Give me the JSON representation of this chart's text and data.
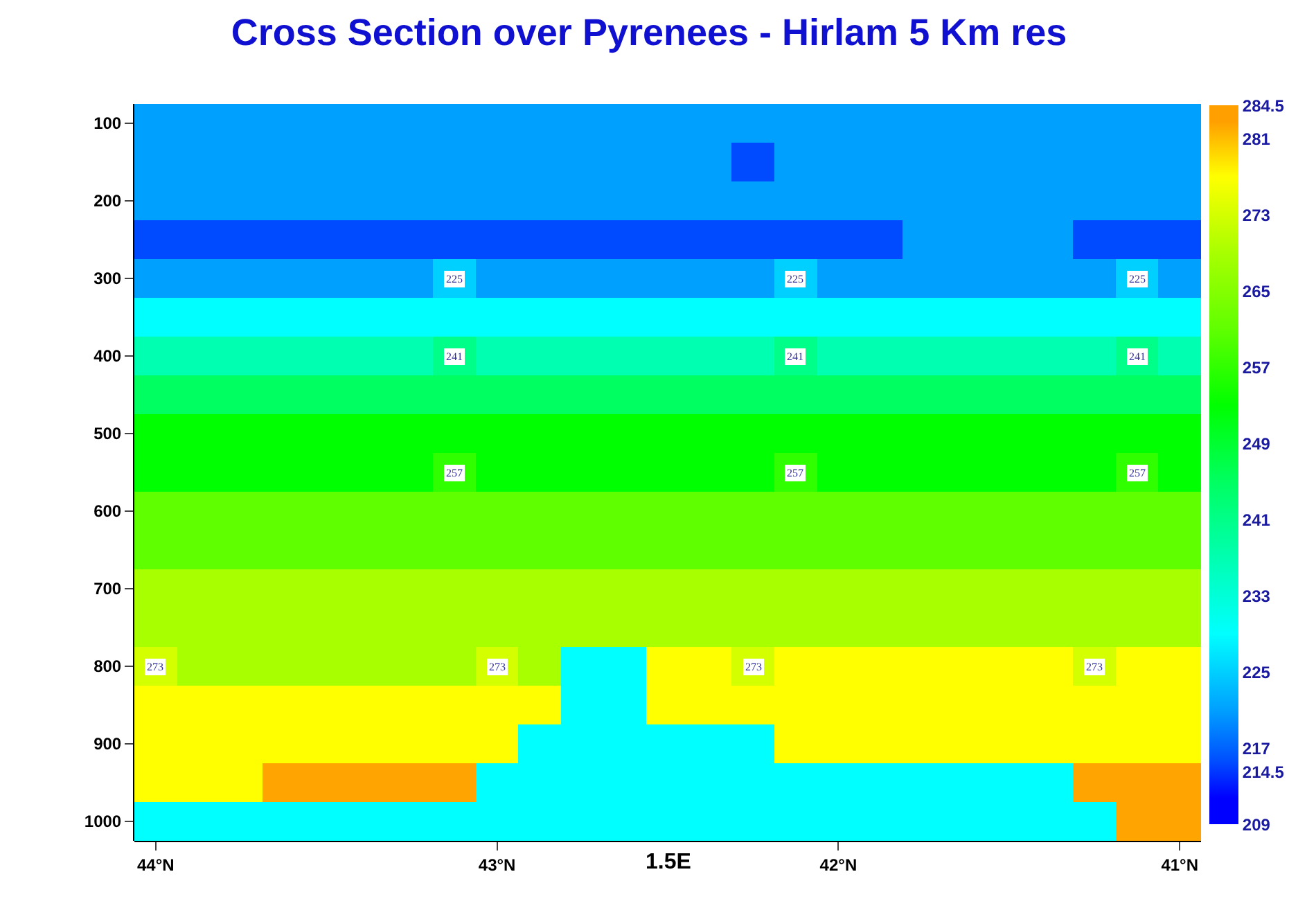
{
  "chart_data": {
    "type": "heatmap",
    "title": "Cross Section over Pyrenees - Hirlam 5 Km res",
    "annotations": [
      "1.5E"
    ],
    "categories": [
      "44°N",
      null,
      null,
      null,
      null,
      null,
      null,
      null,
      "43°N",
      null,
      null,
      null,
      null,
      null,
      null,
      null,
      "42°N",
      null,
      null,
      null,
      null,
      null,
      null,
      null,
      "41°N"
    ],
    "y_categories": [
      "100",
      null,
      "200",
      null,
      "300",
      null,
      "400",
      null,
      "500",
      null,
      "600",
      null,
      "700",
      null,
      "800",
      null,
      "900",
      null,
      "1000"
    ],
    "cells": [
      [
        221,
        221,
        221,
        221,
        221,
        221,
        221,
        221,
        221,
        221,
        221,
        221,
        221,
        221,
        221,
        221,
        221,
        221,
        221,
        221,
        221,
        221,
        221,
        221,
        221
      ],
      [
        221,
        221,
        221,
        221,
        221,
        221,
        221,
        221,
        221,
        221,
        221,
        221,
        221,
        221,
        215.5,
        221,
        221,
        221,
        221,
        221,
        221,
        221,
        221,
        221,
        221
      ],
      [
        221,
        221,
        221,
        221,
        221,
        221,
        221,
        221,
        221,
        221,
        221,
        221,
        221,
        221,
        221,
        221,
        221,
        221,
        221,
        221,
        221,
        221,
        221,
        221,
        221
      ],
      [
        215.5,
        215.5,
        215.5,
        215.5,
        215.5,
        215.5,
        215.5,
        215.5,
        215.5,
        215.5,
        215.5,
        215.5,
        215.5,
        215.5,
        215.5,
        215.5,
        215.5,
        215.5,
        221,
        221,
        221,
        221,
        215.5,
        215.5,
        215.5
      ],
      [
        221,
        221,
        221,
        221,
        221,
        221,
        221,
        225,
        221,
        221,
        221,
        221,
        221,
        221,
        221,
        225,
        221,
        221,
        221,
        221,
        221,
        221,
        221,
        225,
        221
      ],
      [
        229,
        229,
        229,
        229,
        229,
        229,
        229,
        229,
        229,
        229,
        229,
        229,
        229,
        229,
        229,
        229,
        229,
        229,
        229,
        229,
        229,
        229,
        229,
        229,
        229
      ],
      [
        237,
        237,
        237,
        237,
        237,
        237,
        237,
        241,
        237,
        237,
        237,
        237,
        237,
        237,
        237,
        241,
        237,
        237,
        237,
        237,
        237,
        237,
        237,
        241,
        237
      ],
      [
        245,
        245,
        245,
        245,
        245,
        245,
        245,
        245,
        245,
        245,
        245,
        245,
        245,
        245,
        245,
        245,
        245,
        245,
        245,
        245,
        245,
        245,
        245,
        245,
        245
      ],
      [
        253,
        253,
        253,
        253,
        253,
        253,
        253,
        253,
        253,
        253,
        253,
        253,
        253,
        253,
        253,
        253,
        253,
        253,
        253,
        253,
        253,
        253,
        253,
        253,
        253
      ],
      [
        253,
        253,
        253,
        253,
        253,
        253,
        253,
        257,
        253,
        253,
        253,
        253,
        253,
        253,
        253,
        257,
        253,
        253,
        253,
        253,
        253,
        253,
        253,
        257,
        253
      ],
      [
        261,
        261,
        261,
        261,
        261,
        261,
        261,
        261,
        261,
        261,
        261,
        261,
        261,
        261,
        261,
        261,
        261,
        261,
        261,
        261,
        261,
        261,
        261,
        261,
        261
      ],
      [
        261,
        261,
        261,
        261,
        261,
        261,
        261,
        261,
        261,
        261,
        261,
        261,
        261,
        261,
        261,
        261,
        261,
        261,
        261,
        261,
        261,
        261,
        261,
        261,
        261
      ],
      [
        269,
        269,
        269,
        269,
        269,
        269,
        269,
        269,
        269,
        269,
        269,
        269,
        269,
        269,
        269,
        269,
        269,
        269,
        269,
        269,
        269,
        269,
        269,
        269,
        269
      ],
      [
        269,
        269,
        269,
        269,
        269,
        269,
        269,
        269,
        269,
        269,
        269,
        269,
        269,
        269,
        269,
        269,
        269,
        269,
        269,
        269,
        269,
        269,
        269,
        269,
        269
      ],
      [
        273,
        269,
        269,
        269,
        269,
        269,
        269,
        269,
        273,
        269,
        null,
        null,
        277,
        277,
        273,
        277,
        277,
        277,
        277,
        277,
        277,
        277,
        273,
        277,
        277
      ],
      [
        277,
        277,
        277,
        277,
        277,
        277,
        277,
        277,
        277,
        277,
        null,
        null,
        277,
        277,
        277,
        277,
        277,
        277,
        277,
        277,
        277,
        277,
        277,
        277,
        277
      ],
      [
        277,
        277,
        277,
        277,
        277,
        277,
        277,
        277,
        277,
        null,
        null,
        null,
        null,
        null,
        null,
        277,
        277,
        277,
        277,
        277,
        277,
        277,
        277,
        277,
        277
      ],
      [
        277,
        277,
        277,
        282.5,
        282.5,
        282.5,
        282.5,
        282.5,
        null,
        null,
        null,
        null,
        null,
        null,
        null,
        null,
        null,
        null,
        null,
        null,
        null,
        null,
        282.5,
        282.5,
        282.5
      ],
      [
        null,
        null,
        null,
        null,
        null,
        null,
        null,
        null,
        null,
        null,
        null,
        null,
        null,
        null,
        null,
        null,
        null,
        null,
        null,
        null,
        null,
        null,
        null,
        282.5,
        282.5
      ]
    ],
    "cell_labels": [
      [
        null,
        null,
        null,
        null,
        null,
        null,
        null,
        null,
        null,
        null,
        null,
        null,
        null,
        null,
        null,
        null,
        null,
        null,
        null,
        null,
        null,
        null,
        null,
        null,
        null
      ],
      [
        null,
        null,
        null,
        null,
        null,
        null,
        null,
        null,
        null,
        null,
        null,
        null,
        null,
        null,
        null,
        null,
        null,
        null,
        null,
        null,
        null,
        null,
        null,
        null,
        null
      ],
      [
        null,
        null,
        null,
        null,
        null,
        null,
        null,
        null,
        null,
        null,
        null,
        null,
        null,
        null,
        null,
        null,
        null,
        null,
        null,
        null,
        null,
        null,
        null,
        null,
        null
      ],
      [
        null,
        null,
        null,
        null,
        null,
        null,
        null,
        null,
        null,
        null,
        null,
        null,
        null,
        null,
        null,
        null,
        null,
        null,
        null,
        null,
        null,
        null,
        null,
        null,
        null
      ],
      [
        null,
        null,
        null,
        null,
        null,
        null,
        null,
        "225",
        null,
        null,
        null,
        null,
        null,
        null,
        null,
        "225",
        null,
        null,
        null,
        null,
        null,
        null,
        null,
        "225",
        null
      ],
      [
        null,
        null,
        null,
        null,
        null,
        null,
        null,
        null,
        null,
        null,
        null,
        null,
        null,
        null,
        null,
        null,
        null,
        null,
        null,
        null,
        null,
        null,
        null,
        null,
        null
      ],
      [
        null,
        null,
        null,
        null,
        null,
        null,
        null,
        "241",
        null,
        null,
        null,
        null,
        null,
        null,
        null,
        "241",
        null,
        null,
        null,
        null,
        null,
        null,
        null,
        "241",
        null
      ],
      [
        null,
        null,
        null,
        null,
        null,
        null,
        null,
        null,
        null,
        null,
        null,
        null,
        null,
        null,
        null,
        null,
        null,
        null,
        null,
        null,
        null,
        null,
        null,
        null,
        null
      ],
      [
        null,
        null,
        null,
        null,
        null,
        null,
        null,
        null,
        null,
        null,
        null,
        null,
        null,
        null,
        null,
        null,
        null,
        null,
        null,
        null,
        null,
        null,
        null,
        null,
        null
      ],
      [
        null,
        null,
        null,
        null,
        null,
        null,
        null,
        "257",
        null,
        null,
        null,
        null,
        null,
        null,
        null,
        "257",
        null,
        null,
        null,
        null,
        null,
        null,
        null,
        "257",
        null
      ],
      [
        null,
        null,
        null,
        null,
        null,
        null,
        null,
        null,
        null,
        null,
        null,
        null,
        null,
        null,
        null,
        null,
        null,
        null,
        null,
        null,
        null,
        null,
        null,
        null,
        null
      ],
      [
        null,
        null,
        null,
        null,
        null,
        null,
        null,
        null,
        null,
        null,
        null,
        null,
        null,
        null,
        null,
        null,
        null,
        null,
        null,
        null,
        null,
        null,
        null,
        null,
        null
      ],
      [
        null,
        null,
        null,
        null,
        null,
        null,
        null,
        null,
        null,
        null,
        null,
        null,
        null,
        null,
        null,
        null,
        null,
        null,
        null,
        null,
        null,
        null,
        null,
        null,
        null
      ],
      [
        null,
        null,
        null,
        null,
        null,
        null,
        null,
        null,
        null,
        null,
        null,
        null,
        null,
        null,
        null,
        null,
        null,
        null,
        null,
        null,
        null,
        null,
        null,
        null,
        null
      ],
      [
        "273",
        null,
        null,
        null,
        null,
        null,
        null,
        null,
        "273",
        null,
        null,
        null,
        null,
        null,
        "273",
        null,
        null,
        null,
        null,
        null,
        null,
        null,
        "273",
        null,
        null
      ],
      [
        null,
        null,
        null,
        null,
        null,
        null,
        null,
        null,
        null,
        null,
        null,
        null,
        null,
        null,
        null,
        null,
        null,
        null,
        null,
        null,
        null,
        null,
        null,
        null,
        null
      ],
      [
        null,
        null,
        null,
        null,
        null,
        null,
        null,
        null,
        null,
        null,
        null,
        null,
        null,
        null,
        null,
        null,
        null,
        null,
        null,
        null,
        null,
        null,
        null,
        null,
        null
      ],
      [
        null,
        null,
        null,
        null,
        null,
        null,
        null,
        null,
        null,
        null,
        null,
        null,
        null,
        null,
        null,
        null,
        null,
        null,
        null,
        null,
        null,
        null,
        null,
        null,
        null
      ],
      [
        null,
        null,
        null,
        null,
        null,
        null,
        null,
        null,
        null,
        null,
        null,
        null,
        null,
        null,
        null,
        null,
        null,
        null,
        null,
        null,
        null,
        null,
        null,
        null,
        null
      ]
    ],
    "clim": [
      209,
      284.5
    ],
    "cticks": [
      209,
      {
        "value": 214.5,
        "label": "214.5"
      },
      217,
      225,
      233,
      241,
      249,
      257,
      265,
      273,
      281,
      {
        "value": 284.5,
        "label": "284.5"
      }
    ],
    "colors": [
      "#0000ff",
      "#0050ff",
      "#00a0ff",
      "#00ffff",
      "#00ffb0",
      "#00ff60",
      "#00ff00",
      "#60ff00",
      "#a8ff00",
      "#ffff00",
      "#ffa000"
    ]
  }
}
